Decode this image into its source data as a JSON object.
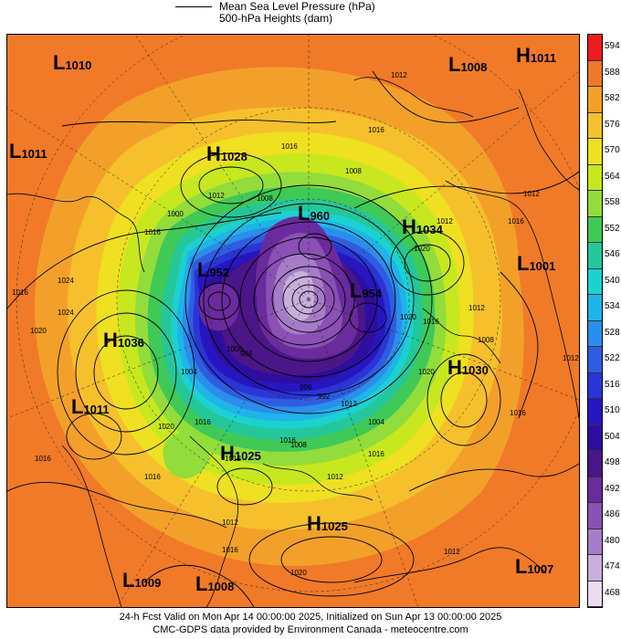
{
  "legend": {
    "line1": "Mean Sea Level Pressure (hPa)",
    "line2": "500-hPa Heights (dam)"
  },
  "colorbar": {
    "levels": [
      "594",
      "588",
      "582",
      "576",
      "570",
      "564",
      "558",
      "552",
      "546",
      "540",
      "534",
      "528",
      "522",
      "516",
      "510",
      "504",
      "498",
      "492",
      "486",
      "480",
      "474",
      "468"
    ],
    "colors": [
      "#ee1c1c",
      "#f0782a",
      "#f3a02a",
      "#f6c02c",
      "#efe021",
      "#c7e81f",
      "#92dc3c",
      "#3fc956",
      "#24c79a",
      "#1cd1d1",
      "#1fb4e7",
      "#2b8eea",
      "#2f5de1",
      "#2b35d6",
      "#2716c0",
      "#2e0e9e",
      "#4a1688",
      "#6a2b9c",
      "#8a50b4",
      "#a67cc8",
      "#c9afdc",
      "#ecdcf1"
    ]
  },
  "pressure_centers": [
    {
      "type": "L",
      "value": "1010"
    },
    {
      "type": "L",
      "value": "1008"
    },
    {
      "type": "H",
      "value": "1011"
    },
    {
      "type": "L",
      "value": "1011"
    },
    {
      "type": "H",
      "value": "1028"
    },
    {
      "type": "L",
      "value": "960"
    },
    {
      "type": "H",
      "value": "1034"
    },
    {
      "type": "L",
      "value": "1001"
    },
    {
      "type": "L",
      "value": "952"
    },
    {
      "type": "L",
      "value": "954"
    },
    {
      "type": "H",
      "value": "1036"
    },
    {
      "type": "H",
      "value": "1030"
    },
    {
      "type": "L",
      "value": "1011"
    },
    {
      "type": "H",
      "value": "1025"
    },
    {
      "type": "H",
      "value": "1025"
    },
    {
      "type": "L",
      "value": "1009"
    },
    {
      "type": "L",
      "value": "1008"
    },
    {
      "type": "L",
      "value": "1007"
    }
  ],
  "isobar_labels": [
    "1016",
    "1012",
    "1016",
    "1020",
    "1024",
    "1016",
    "1012",
    "1008",
    "1000",
    "1008",
    "1012",
    "1016",
    "1012",
    "1016",
    "1020",
    "1016",
    "1012",
    "1012",
    "1016",
    "1024",
    "1020",
    "1016",
    "1012",
    "1004",
    "1000",
    "996",
    "992",
    "984",
    "1004",
    "1008",
    "1012",
    "1016",
    "1020",
    "1016",
    "1012",
    "1016",
    "1020",
    "1016",
    "1012",
    "1008",
    "1020",
    "1016",
    "1012"
  ],
  "footer": {
    "line1": "24-h Fcst Valid on Mon Apr 14 00:00:00 2025, Initialized on Sun Apr 13 00:00:00 2025",
    "line2": "CMC-GDPS data provided by Environment Canada - meteocentre.com"
  }
}
